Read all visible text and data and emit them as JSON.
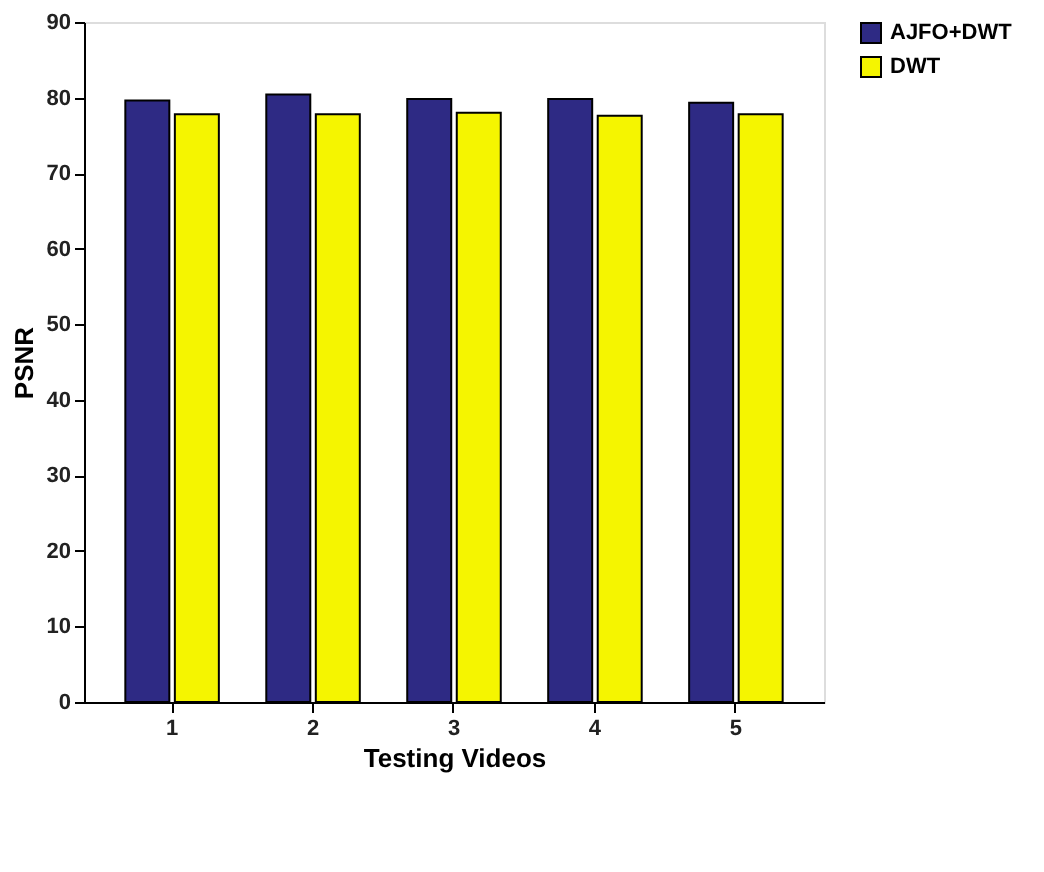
{
  "chart_data": {
    "type": "bar",
    "xlabel": "Testing Videos",
    "ylabel": "PSNR",
    "categories": [
      "1",
      "2",
      "3",
      "4",
      "5"
    ],
    "series": [
      {
        "name": "AJFO+DWT",
        "color": "#2e2a84",
        "values": [
          79.6,
          80.4,
          79.8,
          79.8,
          79.3
        ]
      },
      {
        "name": "DWT",
        "color": "#f5f500",
        "values": [
          77.8,
          77.8,
          78.0,
          77.6,
          77.8
        ]
      }
    ],
    "ylim": [
      0,
      90
    ],
    "yticks": [
      0,
      10,
      20,
      30,
      40,
      50,
      60,
      70,
      80,
      90
    ],
    "grid": false,
    "legend": "right"
  }
}
